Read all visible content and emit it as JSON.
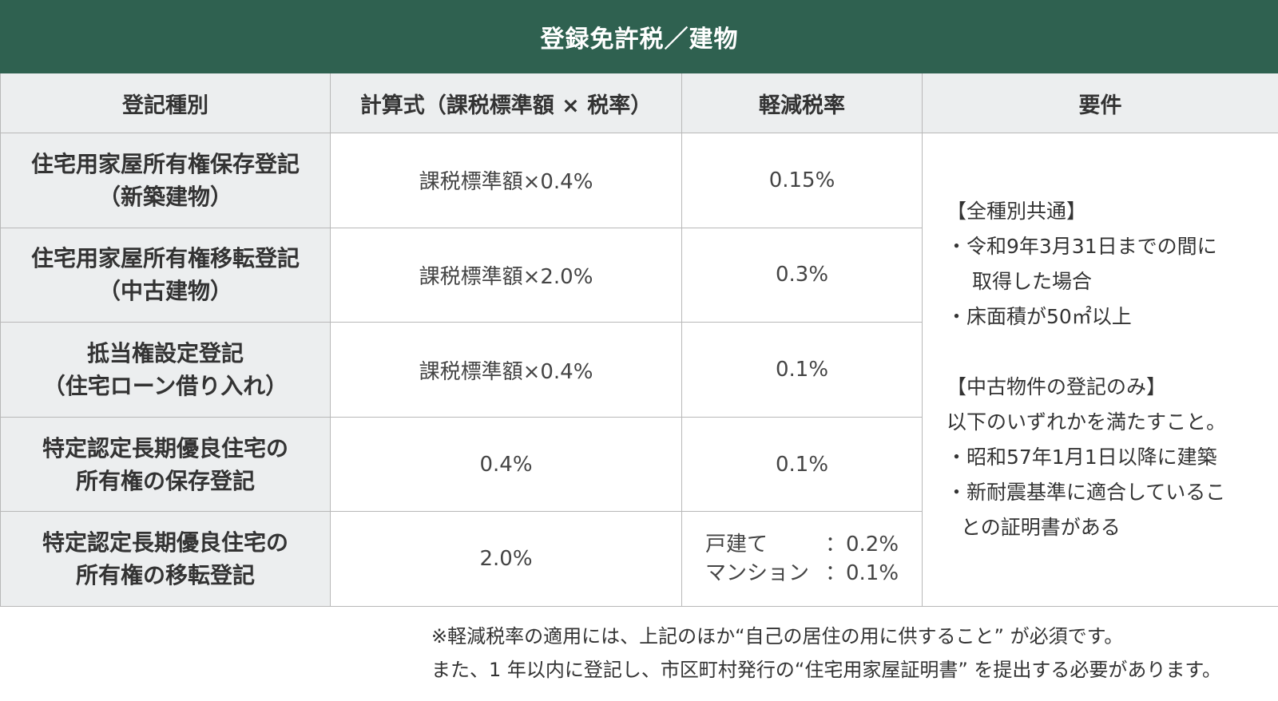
{
  "table": {
    "title": "登録免許税／建物",
    "headers": [
      "登記種別",
      "計算式（課税標準額 × 税率）",
      "軽減税率",
      "要件"
    ],
    "rows": [
      {
        "type_line1": "住宅用家屋所有権保存登記",
        "type_line2": "（新築建物）",
        "formula": "課税標準額×0.4%",
        "reduced": "0.15%"
      },
      {
        "type_line1": "住宅用家屋所有権移転登記",
        "type_line2": "（中古建物）",
        "formula": "課税標準額×2.0%",
        "reduced": "0.3%"
      },
      {
        "type_line1": "抵当権設定登記",
        "type_line2": "（住宅ローン借り入れ）",
        "formula": "課税標準額×0.4%",
        "reduced": "0.1%"
      },
      {
        "type_line1": "特定認定長期優良住宅の",
        "type_line2": "所有権の保存登記",
        "formula": "0.4%",
        "reduced": "0.1%"
      },
      {
        "type_line1": "特定認定長期優良住宅の",
        "type_line2": "所有権の移転登記",
        "formula": "2.0%",
        "reduced_split": [
          {
            "label": "戸建て",
            "value": "：0.2%"
          },
          {
            "label": "マンション",
            "value": "：0.1%"
          }
        ]
      }
    ],
    "requirements": {
      "common_title": "【全種別共通】",
      "common_item1_line1": "・令和9年3月31日までの間に",
      "common_item1_line2": "取得した場合",
      "common_item2": "・床面積が50㎡以上",
      "used_title": "【中古物件の登記のみ】",
      "used_intro": "以下のいずれかを満たすこと。",
      "used_item1": "・昭和57年1月1日以降に建築",
      "used_item2_line1": "・新耐震基準に適合しているこ",
      "used_item2_line2": "との証明書がある"
    }
  },
  "notes": {
    "line1": "※軽減税率の適用には、上記のほか“自己の居住の用に供すること” が必須です。",
    "line2": "また、1 年以内に登記し、市区町村発行の“住宅用家屋証明書” を提出する必要があります。"
  }
}
